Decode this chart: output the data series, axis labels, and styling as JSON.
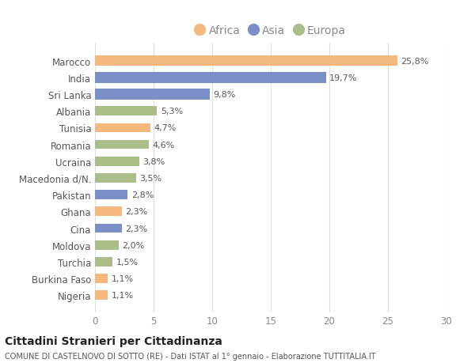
{
  "countries": [
    "Marocco",
    "India",
    "Sri Lanka",
    "Albania",
    "Tunisia",
    "Romania",
    "Ucraina",
    "Macedonia d/N.",
    "Pakistan",
    "Ghana",
    "Cina",
    "Moldova",
    "Turchia",
    "Burkina Faso",
    "Nigeria"
  ],
  "values": [
    25.8,
    19.7,
    9.8,
    5.3,
    4.7,
    4.6,
    3.8,
    3.5,
    2.8,
    2.3,
    2.3,
    2.0,
    1.5,
    1.1,
    1.1
  ],
  "labels": [
    "25,8%",
    "19,7%",
    "9,8%",
    "5,3%",
    "4,7%",
    "4,6%",
    "3,8%",
    "3,5%",
    "2,8%",
    "2,3%",
    "2,3%",
    "2,0%",
    "1,5%",
    "1,1%",
    "1,1%"
  ],
  "continents": [
    "Africa",
    "Asia",
    "Asia",
    "Europa",
    "Africa",
    "Europa",
    "Europa",
    "Europa",
    "Asia",
    "Africa",
    "Asia",
    "Europa",
    "Europa",
    "Africa",
    "Africa"
  ],
  "colors": {
    "Africa": "#F5B97F",
    "Asia": "#7B8FC7",
    "Europa": "#ABBE89"
  },
  "xlim": [
    0,
    30
  ],
  "xticks": [
    0,
    5,
    10,
    15,
    20,
    25,
    30
  ],
  "title": "Cittadini Stranieri per Cittadinanza",
  "subtitle": "COMUNE DI CASTELNOVO DI SOTTO (RE) - Dati ISTAT al 1° gennaio - Elaborazione TUTTITALIA.IT",
  "background_color": "#ffffff",
  "grid_color": "#e0e0e0",
  "bar_height": 0.55,
  "top3_bar_height": 0.65
}
